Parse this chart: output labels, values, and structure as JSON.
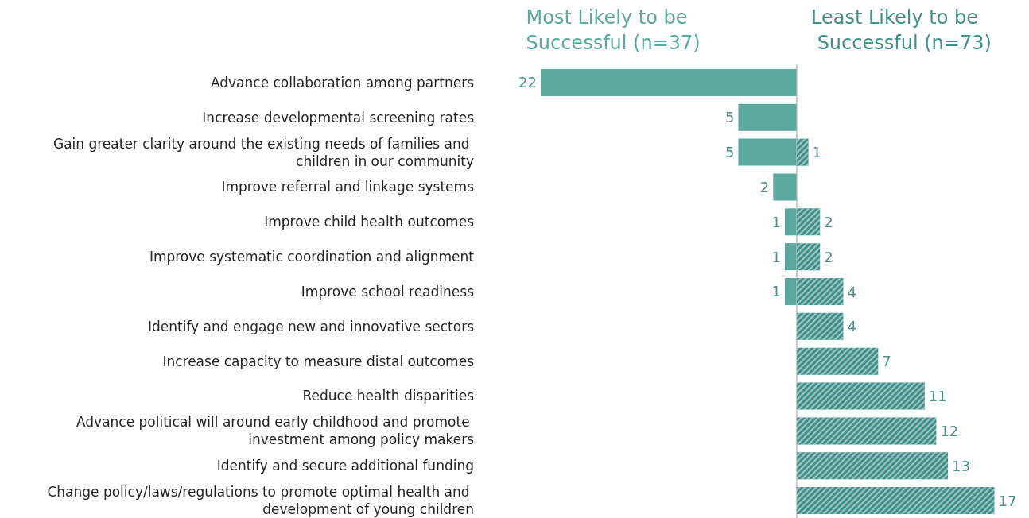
{
  "chart_data": [
    {
      "type": "bar",
      "orientation": "horizontal",
      "xlim": [
        22,
        0
      ],
      "tick_labels": "y",
      "data_labels": true,
      "categories": [
        "Advance collaboration among partners",
        "Increase developmental screening rates",
        "Gain greater clarity around the existing needs of families and children in our community",
        "Improve referral and linkage systems",
        "Improve child health outcomes",
        "Improve systematic coordination and alignment",
        "Improve school readiness",
        "Identify and engage new and innovative sectors",
        "Increase capacity to measure distal outcomes",
        "Reduce health disparities",
        "Advance political will around early childhood and promote investment among policy makers",
        "Identify and secure additional funding",
        "Change policy/laws/regulations to promote optimal health and development of young children"
      ],
      "series": [
        {
          "name": "Most Likely to be Successful (n=37)",
          "color": "#5ba8a0",
          "values": [
            22,
            5,
            5,
            2,
            1,
            1,
            1,
            null,
            null,
            null,
            null,
            null,
            null
          ]
        }
      ]
    },
    {
      "type": "bar",
      "orientation": "horizontal",
      "xlim": [
        0,
        17
      ],
      "tick_labels": false,
      "data_labels": true,
      "categories": [
        null,
        null,
        null,
        null,
        null,
        null,
        null,
        null,
        null,
        null,
        null,
        null,
        null
      ],
      "series": [
        {
          "name": "Least Likely to be Successful (n=73)",
          "color": "#3f8f8a",
          "values": [
            null,
            null,
            1,
            null,
            2,
            2,
            4,
            4,
            7,
            11,
            12,
            13,
            17
          ]
        }
      ]
    }
  ]
}
